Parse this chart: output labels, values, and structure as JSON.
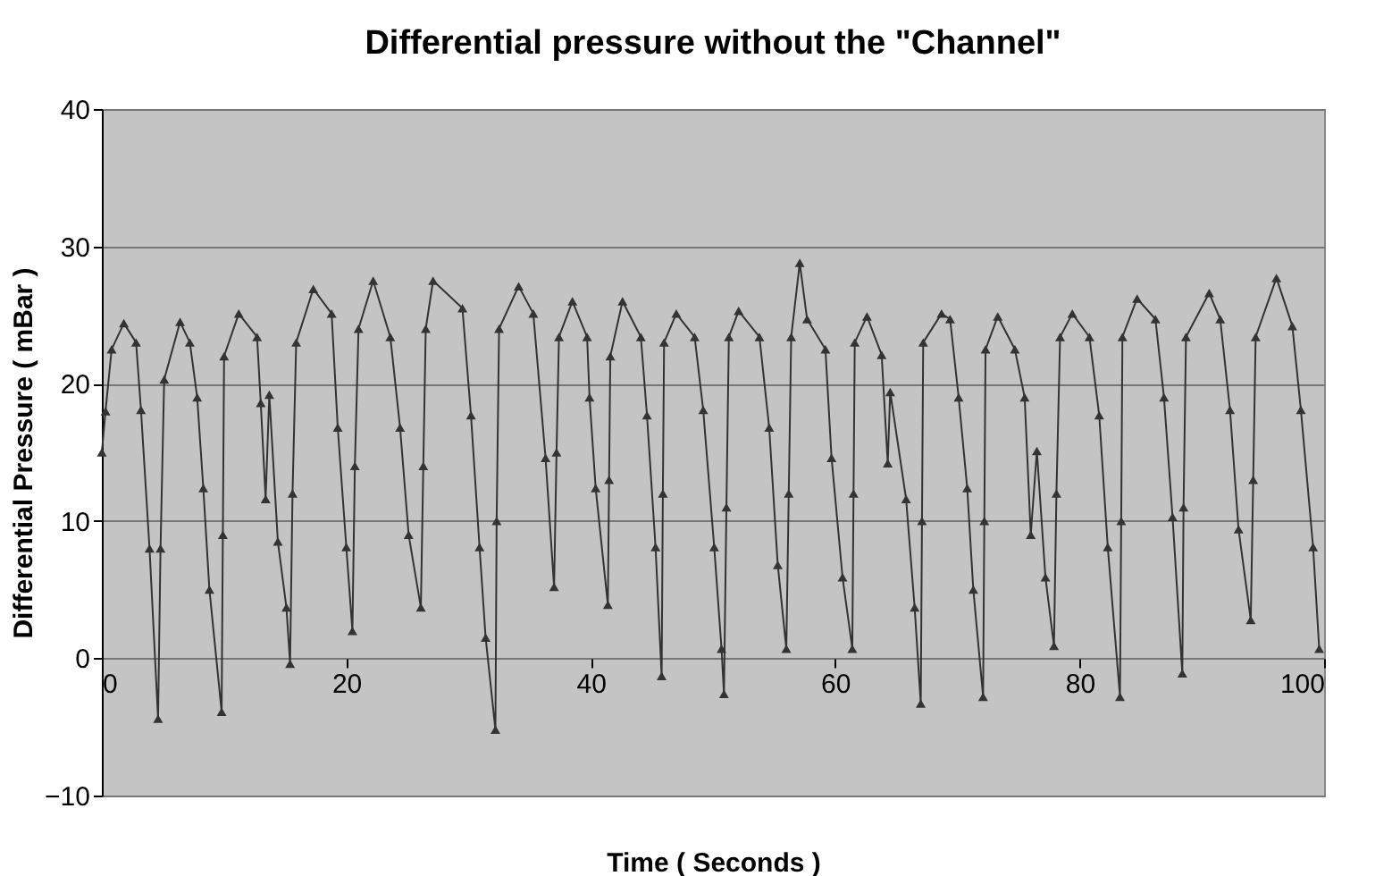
{
  "chart_data": {
    "type": "line",
    "title": "Differential pressure without the \"Channel\"",
    "xlabel": "Time ( Seconds )",
    "ylabel": "Differential Pressure ( mBar )",
    "xlim": [
      0,
      100
    ],
    "xticks": [
      0,
      20,
      40,
      60,
      80,
      100
    ],
    "ylim": [
      -10,
      40
    ],
    "yticks": [
      -10,
      0,
      10,
      20,
      30,
      40
    ],
    "grid": "y",
    "legend": false,
    "marker": "triangle",
    "line_style": "solid",
    "series": [
      {
        "color": "#333333",
        "x": [
          0,
          0.3,
          0.8,
          1.8,
          2.8,
          3.2,
          3.9,
          4.6,
          4.8,
          5.1,
          6.4,
          7.2,
          7.8,
          8.3,
          8.8,
          9.8,
          9.9,
          10.0,
          11.2,
          12.7,
          13.0,
          13.4,
          13.7,
          14.4,
          15.1,
          15.4,
          15.6,
          15.9,
          17.3,
          18.8,
          19.3,
          20.0,
          20.5,
          20.7,
          21.0,
          22.2,
          23.6,
          24.4,
          25.1,
          26.1,
          26.3,
          26.5,
          27.1,
          29.5,
          30.2,
          30.9,
          31.4,
          32.2,
          32.3,
          32.5,
          34.1,
          35.3,
          36.3,
          37.0,
          37.2,
          37.4,
          38.5,
          39.7,
          39.9,
          40.4,
          41.4,
          41.5,
          41.6,
          42.6,
          44.1,
          44.6,
          45.3,
          45.8,
          45.9,
          46.0,
          47.0,
          48.5,
          49.2,
          50.1,
          50.7,
          50.9,
          51.1,
          51.3,
          52.1,
          53.8,
          54.6,
          55.3,
          56.0,
          56.2,
          56.4,
          57.1,
          57.7,
          59.2,
          59.7,
          60.6,
          61.4,
          61.5,
          61.6,
          62.6,
          63.8,
          64.3,
          64.5,
          65.8,
          66.5,
          67.0,
          67.1,
          67.2,
          68.7,
          69.4,
          70.1,
          70.8,
          71.3,
          72.1,
          72.2,
          72.3,
          73.3,
          74.7,
          75.5,
          76.0,
          76.5,
          77.2,
          77.9,
          78.1,
          78.4,
          79.4,
          80.8,
          81.6,
          82.3,
          83.3,
          83.4,
          83.5,
          84.7,
          86.2,
          86.9,
          87.6,
          88.4,
          88.5,
          88.7,
          90.6,
          91.5,
          92.3,
          93.0,
          94.0,
          94.2,
          94.4,
          96.1,
          97.4,
          98.1,
          99.1,
          99.6
        ],
        "values": [
          15,
          18,
          22.5,
          24.4,
          23,
          18.1,
          8,
          -4.4,
          8,
          20.3,
          24.5,
          23,
          19,
          12.4,
          5,
          -3.9,
          9,
          22,
          25.1,
          23.4,
          18.6,
          11.6,
          19.2,
          8.5,
          3.7,
          -0.4,
          12,
          23,
          26.9,
          25.1,
          16.8,
          8.1,
          2,
          14,
          24,
          27.5,
          23.4,
          16.8,
          9,
          3.7,
          14,
          24,
          27.5,
          25.5,
          17.7,
          8.1,
          1.5,
          -5.2,
          10,
          24,
          27.1,
          25.1,
          14.6,
          5.2,
          15,
          23.4,
          26,
          23.4,
          19,
          12.4,
          3.9,
          13,
          22,
          26,
          23.4,
          17.7,
          8.1,
          -1.3,
          12,
          23,
          25.1,
          23.4,
          18.1,
          8.1,
          0.7,
          -2.6,
          11,
          23.4,
          25.3,
          23.4,
          16.8,
          6.8,
          0.7,
          12,
          23.4,
          28.8,
          24.7,
          22.5,
          14.6,
          5.9,
          0.7,
          12,
          23,
          24.9,
          22.1,
          14.2,
          19.4,
          11.6,
          3.7,
          -3.3,
          10,
          23,
          25.1,
          24.7,
          19,
          12.4,
          5,
          -2.8,
          10,
          22.5,
          24.9,
          22.5,
          19,
          9,
          15.1,
          5.9,
          0.9,
          12,
          23.4,
          25.1,
          23.4,
          17.7,
          8.1,
          -2.8,
          10,
          23.4,
          26.2,
          24.7,
          19,
          10.3,
          -1.1,
          11,
          23.4,
          26.6,
          24.7,
          18.1,
          9.4,
          2.8,
          13,
          23.4,
          27.7,
          24.2,
          18.1,
          8.1,
          0.7
        ]
      }
    ]
  }
}
